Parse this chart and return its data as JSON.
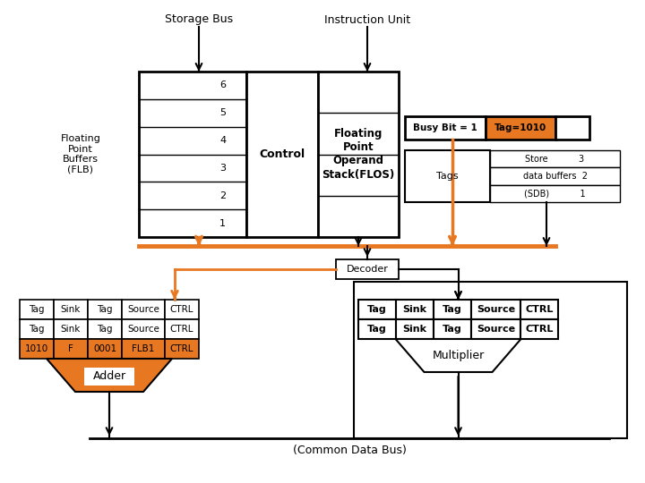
{
  "bg_color": "#ffffff",
  "orange": "#E87722",
  "black": "#000000",
  "storage_bus_label": "Storage Bus",
  "instruction_unit_label": "Instruction Unit",
  "flb_label": "Floating\nPoint\nBuffers\n(FLB)",
  "control_label": "Control",
  "flos_label": "Floating\nPoint\nOperand\nStack(FLOS)",
  "busy_bit_label": "Busy Bit = 1",
  "tag_label": "Tag=1010",
  "tags_label": "Tags",
  "store_label": "Store           3",
  "data_buffers_label": "data buffers  2",
  "sdb_label": "(SDB)           1",
  "decoder_label": "Decoder",
  "adder_label": "Adder",
  "multiplier_label": "Multiplier",
  "common_data_bus_label": "(Common Data Bus)",
  "flb_rows": [
    "6",
    "5",
    "4",
    "3",
    "2",
    "1"
  ],
  "adder_table": [
    [
      "Tag",
      "Sink",
      "Tag",
      "Source",
      "CTRL"
    ],
    [
      "Tag",
      "Sink",
      "Tag",
      "Source",
      "CTRL"
    ],
    [
      "1010",
      "F",
      "0001",
      "FLB1",
      "CTRL"
    ]
  ],
  "mult_table": [
    [
      "Tag",
      "Sink",
      "Tag",
      "Source",
      "CTRL"
    ],
    [
      "Tag",
      "Sink",
      "Tag",
      "Source",
      "CTRL"
    ]
  ],
  "adder_col_w": [
    38,
    38,
    38,
    48,
    38
  ],
  "mult_col_w": [
    42,
    42,
    42,
    55,
    42
  ]
}
